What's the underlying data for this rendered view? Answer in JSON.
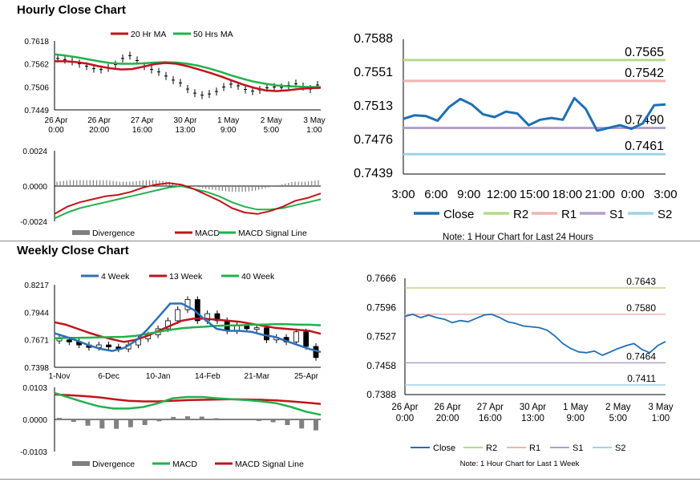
{
  "titles": {
    "hourly": "Hourly Close Chart",
    "weekly": "Weekly Close Chart"
  },
  "colors": {
    "red": "#c0141c",
    "green": "#22b14c",
    "blue": "#2d6fb7",
    "close": "#1f6fb4",
    "r2": "#b5d98e",
    "r1": "#f0b4b0",
    "s1": "#b4a0cc",
    "s2": "#9fd4e6",
    "grey": "#808080"
  },
  "chart_data": [
    {
      "id": "hourly_price",
      "type": "line",
      "title": "Hourly Close Chart",
      "legend": [
        "20 Hr MA",
        "50 Hrs MA"
      ],
      "y_ticks": [
        "0.7618",
        "0.7562",
        "0.7506",
        "0.7449"
      ],
      "ylim": [
        0.7449,
        0.7618
      ],
      "x_labels": [
        [
          "26 Apr",
          "0:00"
        ],
        [
          "26 Apr",
          "20:00"
        ],
        [
          "27 Apr",
          "16:00"
        ],
        [
          "30 Apr",
          "13:00"
        ],
        [
          "1 May",
          "9:00"
        ],
        [
          "2 May",
          "5:00"
        ],
        [
          "3 May",
          "1:00"
        ]
      ],
      "series": [
        {
          "name": "20 Hr MA",
          "values": [
            0.7568,
            0.7568,
            0.7566,
            0.7562,
            0.7556,
            0.7551,
            0.7548,
            0.7549,
            0.7555,
            0.7561,
            0.7564,
            0.7562,
            0.7556,
            0.7548,
            0.754,
            0.7531,
            0.7521,
            0.7511,
            0.7503,
            0.7497,
            0.7495,
            0.7497,
            0.75,
            0.7502,
            0.7503
          ]
        },
        {
          "name": "50 Hrs MA",
          "values": [
            0.7585,
            0.7582,
            0.7578,
            0.7573,
            0.7568,
            0.7564,
            0.7562,
            0.7562,
            0.7563,
            0.7565,
            0.7566,
            0.7565,
            0.7562,
            0.7557,
            0.755,
            0.7542,
            0.7533,
            0.7525,
            0.7518,
            0.7513,
            0.7509,
            0.7507,
            0.7506,
            0.7505,
            0.7505
          ]
        }
      ],
      "bars": [
        0.7575,
        0.7572,
        0.7568,
        0.7562,
        0.7556,
        0.755,
        0.7548,
        0.7552,
        0.756,
        0.7575,
        0.7582,
        0.757,
        0.7556,
        0.7548,
        0.7542,
        0.7532,
        0.7522,
        0.7515,
        0.75,
        0.749,
        0.7485,
        0.7488,
        0.7494,
        0.7505,
        0.7512,
        0.7508,
        0.7499,
        0.7495,
        0.7498,
        0.7503,
        0.7505,
        0.7504,
        0.7509,
        0.7513,
        0.7506,
        0.75,
        0.751
      ]
    },
    {
      "id": "hourly_macd",
      "type": "line",
      "legend": [
        "Divergence",
        "MACD",
        "MACD Signal Line"
      ],
      "y_ticks": [
        "0.0024",
        "0.0000",
        "-0.0024"
      ],
      "ylim": [
        -0.0024,
        0.0024
      ],
      "series": [
        {
          "name": "MACD",
          "values": [
            -0.0019,
            -0.0014,
            -0.0011,
            -0.0009,
            -0.0007,
            -0.0006,
            -0.0004,
            -0.0001,
            0.0001,
            0.0002,
            0.0001,
            -0.0002,
            -0.0006,
            -0.001,
            -0.0015,
            -0.0018,
            -0.0019,
            -0.0017,
            -0.0014,
            -0.001,
            -0.0008,
            -0.0005
          ]
        },
        {
          "name": "MACD Signal Line",
          "values": [
            -0.0022,
            -0.0018,
            -0.0015,
            -0.0013,
            -0.0011,
            -0.0009,
            -0.0007,
            -0.0005,
            -0.0003,
            -0.0001,
            0.0,
            -0.0002,
            -0.0004,
            -0.0007,
            -0.0011,
            -0.0014,
            -0.0016,
            -0.0016,
            -0.0015,
            -0.0013,
            -0.0011,
            -0.0009
          ]
        }
      ],
      "divergence": [
        0.0003,
        0.0004,
        0.0004,
        0.0004,
        0.0004,
        0.0003,
        0.0003,
        0.0004,
        0.0004,
        0.0003,
        0.0001,
        0.0,
        -0.0002,
        -0.0003,
        -0.0004,
        -0.0004,
        -0.0003,
        -0.0001,
        0.0001,
        0.0003,
        0.0003,
        0.0004
      ]
    },
    {
      "id": "hourly_24h",
      "type": "line",
      "y_ticks": [
        "0.7588",
        "0.7551",
        "0.7513",
        "0.7476",
        "0.7439"
      ],
      "ylim": [
        0.7439,
        0.7588
      ],
      "x_labels": [
        "3:00",
        "6:00",
        "9:00",
        "12:00",
        "15:00",
        "18:00",
        "21:00",
        "0:00",
        "3:00"
      ],
      "close": [
        0.75,
        0.7504,
        0.7503,
        0.7498,
        0.7513,
        0.7522,
        0.7516,
        0.7505,
        0.7502,
        0.7508,
        0.7506,
        0.7493,
        0.7499,
        0.7501,
        0.7499,
        0.7523,
        0.7511,
        0.7487,
        0.749,
        0.7493,
        0.7489,
        0.7495,
        0.7515,
        0.7516
      ],
      "levels": [
        {
          "name": "R2",
          "value": 0.7565,
          "label": "0.7565"
        },
        {
          "name": "R1",
          "value": 0.7542,
          "label": "0.7542"
        },
        {
          "name": "S1",
          "value": 0.749,
          "label": "0.7490"
        },
        {
          "name": "S2",
          "value": 0.7461,
          "label": "0.7461"
        }
      ],
      "legend": [
        "Close",
        "R2",
        "R1",
        "S1",
        "S2"
      ],
      "note": "Note: 1 Hour Chart for Last 24 Hours"
    },
    {
      "id": "weekly_price",
      "type": "line",
      "title": "Weekly Close Chart",
      "legend": [
        "4 Week",
        "13 Week",
        "40 Week"
      ],
      "y_ticks": [
        "0.8217",
        "0.7944",
        "0.7671",
        "0.7398"
      ],
      "ylim": [
        0.7398,
        0.8217
      ],
      "x_labels": [
        "1-Nov",
        "6-Dec",
        "10-Jan",
        "14-Feb",
        "21-Mar",
        "25-Apr"
      ],
      "series": [
        {
          "name": "4 Week",
          "values": [
            0.7735,
            0.77,
            0.766,
            0.7615,
            0.758,
            0.756,
            0.759,
            0.766,
            0.777,
            0.79,
            0.803,
            0.803,
            0.797,
            0.787,
            0.778,
            0.776,
            0.776,
            0.775,
            0.772,
            0.77,
            0.766,
            0.762,
            0.758,
            0.755
          ]
        },
        {
          "name": "13 Week",
          "values": [
            0.7845,
            0.782,
            0.778,
            0.774,
            0.7705,
            0.7675,
            0.765,
            0.767,
            0.771,
            0.776,
            0.781,
            0.786,
            0.788,
            0.788,
            0.787,
            0.786,
            0.785,
            0.783,
            0.781,
            0.779,
            0.778,
            0.777,
            0.776,
            0.773
          ]
        },
        {
          "name": "40 Week",
          "values": [
            0.7685,
            0.769,
            0.769,
            0.7692,
            0.7695,
            0.7698,
            0.77,
            0.771,
            0.773,
            0.775,
            0.777,
            0.7785,
            0.7795,
            0.78,
            0.781,
            0.7812,
            0.7815,
            0.782,
            0.7822,
            0.7825,
            0.7825,
            0.7822,
            0.782,
            0.7815
          ]
        }
      ],
      "candles": [
        [
          0.766,
          0.768
        ],
        [
          0.767,
          0.765
        ],
        [
          0.765,
          0.762
        ],
        [
          0.762,
          0.7595
        ],
        [
          0.7595,
          0.762
        ],
        [
          0.762,
          0.76
        ],
        [
          0.76,
          0.758
        ],
        [
          0.758,
          0.762
        ],
        [
          0.762,
          0.768
        ],
        [
          0.768,
          0.772
        ],
        [
          0.772,
          0.778
        ],
        [
          0.778,
          0.786
        ],
        [
          0.786,
          0.797
        ],
        [
          0.797,
          0.807
        ],
        [
          0.807,
          0.786
        ],
        [
          0.786,
          0.793
        ],
        [
          0.793,
          0.786
        ],
        [
          0.786,
          0.776
        ],
        [
          0.776,
          0.781
        ],
        [
          0.781,
          0.778
        ],
        [
          0.778,
          0.779
        ],
        [
          0.779,
          0.767
        ],
        [
          0.767,
          0.7695
        ],
        [
          0.7695,
          0.765
        ],
        [
          0.765,
          0.775
        ],
        [
          0.775,
          0.7605
        ],
        [
          0.7605,
          0.7495
        ]
      ]
    },
    {
      "id": "weekly_macd",
      "type": "line",
      "legend": [
        "Divergence",
        "MACD",
        "MACD Signal Line"
      ],
      "y_ticks": [
        "0.0103",
        "0.0000",
        "-0.0103"
      ],
      "ylim": [
        -0.0103,
        0.0103
      ],
      "series": [
        {
          "name": "MACD",
          "values": [
            0.0085,
            0.007,
            0.0055,
            0.0042,
            0.0035,
            0.0035,
            0.004,
            0.0052,
            0.0068,
            0.0072,
            0.0072,
            0.0068,
            0.0065,
            0.0062,
            0.0058,
            0.0052,
            0.004,
            0.0025,
            0.0015
          ]
        },
        {
          "name": "MACD Signal Line",
          "values": [
            0.008,
            0.0078,
            0.0075,
            0.0071,
            0.0065,
            0.006,
            0.0058,
            0.0058,
            0.006,
            0.0062,
            0.0063,
            0.0064,
            0.0065,
            0.0064,
            0.0063,
            0.0061,
            0.0058,
            0.0054,
            0.005
          ]
        },
        {
          "name": "Divergence",
          "values": [
            0.0005,
            -0.0008,
            -0.002,
            -0.0029,
            -0.003,
            -0.0025,
            -0.0018,
            -0.0006,
            0.0008,
            0.001,
            0.0009,
            0.0004,
            0.0,
            -0.0002,
            -0.0005,
            -0.0009,
            -0.0018,
            -0.0029,
            -0.0035
          ]
        }
      ]
    },
    {
      "id": "weekly_1w",
      "type": "line",
      "y_ticks": [
        "0.7666",
        "0.7596",
        "0.7527",
        "0.7458",
        "0.7388"
      ],
      "ylim": [
        0.7388,
        0.7666
      ],
      "x_labels": [
        [
          "26 Apr",
          "0:00"
        ],
        [
          "26 Apr",
          "20:00"
        ],
        [
          "27 Apr",
          "16:00"
        ],
        [
          "30 Apr",
          "13:00"
        ],
        [
          "1 May",
          "9:00"
        ],
        [
          "2 May",
          "5:00"
        ],
        [
          "3 May",
          "1:00"
        ]
      ],
      "close": [
        0.7575,
        0.758,
        0.7572,
        0.7578,
        0.7572,
        0.7568,
        0.756,
        0.7565,
        0.7562,
        0.757,
        0.7578,
        0.758,
        0.7572,
        0.7562,
        0.7558,
        0.7552,
        0.755,
        0.7548,
        0.7542,
        0.7528,
        0.751,
        0.7498,
        0.749,
        0.7488,
        0.7492,
        0.7482,
        0.749,
        0.7498,
        0.7505,
        0.751,
        0.7496,
        0.7488,
        0.7505,
        0.7515
      ],
      "levels": [
        {
          "name": "R2",
          "value": 0.7643,
          "label": "0.7643"
        },
        {
          "name": "R1",
          "value": 0.758,
          "label": "0.7580"
        },
        {
          "name": "S1",
          "value": 0.7464,
          "label": "0.7464"
        },
        {
          "name": "S2",
          "value": 0.7411,
          "label": "0.7411"
        }
      ],
      "legend": [
        "Close",
        "R2",
        "R1",
        "S1",
        "S2"
      ],
      "note": "Note: 1 Hour Chart for Last 1 Week"
    }
  ]
}
